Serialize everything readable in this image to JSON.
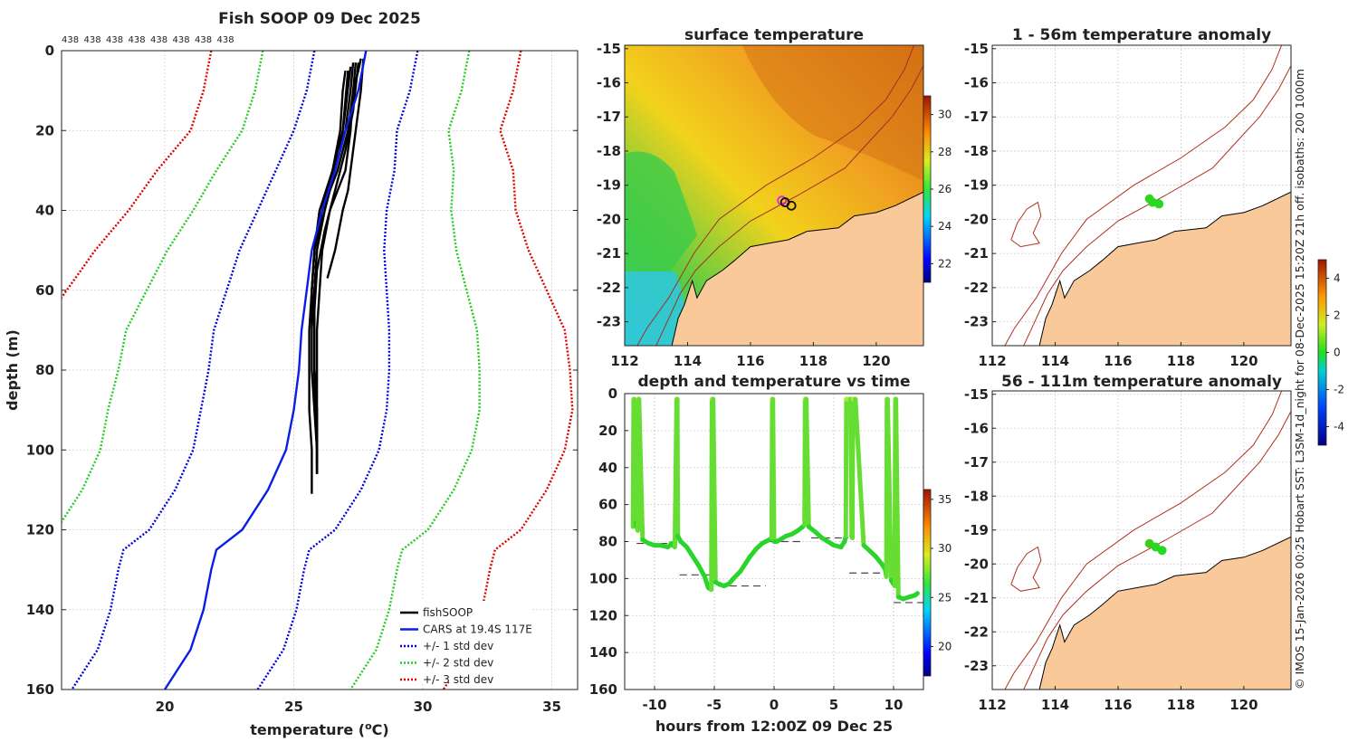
{
  "footer_text": "© IMOS 15-Jan-2026 00:25 Hobart SST: L3SM-1d_night for 08-Dec-2025 15:20Z 21h off. isobaths: 200   1000m",
  "colors": {
    "fishsoop": "#000000",
    "cars": "#0a1ee6",
    "std1": "#0000dd",
    "std2": "#22cc22",
    "std3": "#dd0000",
    "land": "#f9c99a",
    "isobath": "#b03020"
  },
  "chart_data": [
    {
      "name": "profile",
      "type": "line",
      "title": "Fish SOOP 09 Dec 2025",
      "xlabel": "temperature (°C)",
      "ylabel": "depth (m)",
      "xlim": [
        16,
        36
      ],
      "ylim": [
        160,
        0
      ],
      "xticks": [
        20,
        25,
        30,
        35
      ],
      "yticks": [
        0,
        20,
        40,
        60,
        80,
        100,
        120,
        140,
        160
      ],
      "top_labels": [
        "438",
        "438",
        "438",
        "438",
        "438",
        "438",
        "438",
        "438"
      ],
      "legend": [
        "fishSOOP",
        "CARS at 19.4S 117E",
        "+/- 1 std dev",
        "+/- 2 std dev",
        "+/- 3 std dev"
      ],
      "depth": [
        0,
        10,
        20,
        30,
        40,
        50,
        60,
        70,
        80,
        90,
        100,
        110,
        120,
        125,
        130,
        140,
        150,
        160
      ],
      "cars_mean": [
        27.8,
        27.5,
        27.0,
        26.6,
        26.1,
        25.7,
        25.5,
        25.3,
        25.2,
        25.0,
        24.7,
        24.0,
        23.0,
        22.0,
        21.8,
        21.5,
        21.0,
        20.0
      ],
      "std_dev": [
        2.0,
        2.0,
        2.0,
        2.3,
        2.5,
        2.8,
        3.1,
        3.4,
        3.5,
        3.6,
        3.6,
        3.6,
        3.6,
        3.6,
        3.6,
        3.6,
        3.6,
        3.6
      ],
      "casts": [
        {
          "depth": [
            2,
            5,
            10,
            20,
            30,
            40,
            50,
            60,
            70,
            80,
            90,
            100,
            106
          ],
          "temp": [
            27.6,
            27.5,
            27.3,
            27.2,
            27.0,
            26.4,
            26.1,
            26.0,
            25.9,
            25.9,
            25.9,
            25.9,
            25.9
          ]
        },
        {
          "depth": [
            3,
            10,
            20,
            30,
            40,
            50,
            60,
            70,
            80,
            90,
            100,
            106
          ],
          "temp": [
            27.4,
            27.3,
            27.1,
            26.7,
            26.1,
            25.9,
            25.8,
            25.8,
            25.8,
            25.9,
            25.9,
            25.9
          ]
        },
        {
          "depth": [
            2,
            10,
            20,
            30,
            35,
            40,
            50,
            57
          ],
          "temp": [
            27.7,
            27.6,
            27.4,
            27.2,
            27.1,
            26.9,
            26.6,
            26.3
          ]
        },
        {
          "depth": [
            5,
            10,
            20,
            30,
            40,
            50,
            60,
            70,
            80,
            90,
            100,
            105
          ],
          "temp": [
            27.0,
            26.9,
            26.8,
            26.5,
            26.0,
            25.8,
            25.7,
            25.8,
            25.8,
            25.8,
            25.9,
            25.9
          ]
        },
        {
          "depth": [
            3,
            10,
            20,
            30,
            40,
            50,
            60,
            70,
            80,
            90,
            100,
            104
          ],
          "temp": [
            27.3,
            27.2,
            27.0,
            26.6,
            26.2,
            25.9,
            25.8,
            25.8,
            25.8,
            25.9,
            25.9,
            25.9
          ]
        },
        {
          "depth": [
            4,
            15,
            25,
            35,
            40,
            50,
            60,
            70,
            80,
            90
          ],
          "temp": [
            27.2,
            27.0,
            26.8,
            26.3,
            26.0,
            25.8,
            25.7,
            25.7,
            25.7,
            25.8
          ]
        },
        {
          "depth": [
            5,
            20,
            30,
            40,
            50,
            60,
            70,
            80,
            90,
            100,
            111
          ],
          "temp": [
            27.1,
            26.9,
            26.5,
            26.1,
            25.8,
            25.7,
            25.6,
            25.6,
            25.6,
            25.7,
            25.7
          ]
        },
        {
          "depth": [
            3,
            15,
            25,
            35,
            45,
            55,
            65,
            80,
            95,
            106
          ],
          "temp": [
            27.5,
            27.3,
            27.0,
            26.6,
            26.2,
            25.9,
            25.8,
            25.8,
            25.9,
            25.9
          ]
        }
      ]
    },
    {
      "name": "surface_map",
      "type": "heatmap",
      "title": "surface temperature",
      "xlim": [
        112,
        121.5
      ],
      "ylim": [
        -23.7,
        -14.9
      ],
      "xticks": [
        112,
        114,
        116,
        118,
        120
      ],
      "yticks": [
        -15,
        -16,
        -17,
        -18,
        -19,
        -20,
        -21,
        -22,
        -23
      ],
      "colorbar_ticks": [
        22,
        24,
        26,
        28,
        30
      ],
      "colorbar_range": [
        21,
        31
      ],
      "cast_positions": [
        {
          "lon": 117.0,
          "lat": -19.45
        },
        {
          "lon": 117.1,
          "lat": -19.5
        },
        {
          "lon": 117.3,
          "lat": -19.6
        }
      ]
    },
    {
      "name": "time_series",
      "type": "scatter",
      "title": "depth and temperature vs time",
      "xlabel": "hours from 12:00Z 09 Dec 25",
      "xlim": [
        -12.5,
        12.5
      ],
      "ylim": [
        160,
        0
      ],
      "xticks": [
        -10,
        -5,
        0,
        5,
        10
      ],
      "yticks": [
        0,
        20,
        40,
        60,
        80,
        100,
        120,
        140,
        160
      ],
      "colorbar_ticks": [
        20,
        25,
        30,
        35
      ],
      "colorbar_range": [
        17,
        36
      ],
      "depth_track": {
        "time": [
          -11.8,
          -11.75,
          -11.7,
          -11.55,
          -11.4,
          -11.35,
          -11.3,
          -11.0,
          -10.5,
          -10.0,
          -9.5,
          -8.9,
          -8.7,
          -8.6,
          -8.3,
          -8.15,
          -8.1,
          -8.05,
          -7.8,
          -7.3,
          -6.8,
          -6.3,
          -5.8,
          -5.5,
          -5.25,
          -5.2,
          -5.1,
          -4.9,
          -4.6,
          -4.2,
          -3.8,
          -3.4,
          -2.8,
          -2.4,
          -2.0,
          -1.5,
          -1.0,
          -0.4,
          -0.2,
          -0.15,
          -0.1,
          0.0,
          0.2,
          0.5,
          1.0,
          1.5,
          2.0,
          2.4,
          2.55,
          2.6,
          2.7,
          2.9,
          3.5,
          4.0,
          4.5,
          5.0,
          5.6,
          5.9,
          6.0,
          6.05,
          6.4,
          6.5,
          6.55,
          6.6,
          6.8,
          7.5,
          8.0,
          8.5,
          9.0,
          9.3,
          9.4,
          9.45,
          9.5,
          9.8,
          10.1,
          10.15,
          10.2,
          10.4,
          10.8,
          11.3,
          11.8,
          12.0
        ],
        "depth": [
          72,
          3,
          3,
          70,
          74,
          3,
          3,
          79,
          81,
          82,
          82,
          83,
          82,
          81,
          83,
          3,
          3,
          77,
          80,
          83,
          88,
          93,
          99,
          105,
          106,
          3,
          3,
          102,
          103,
          104,
          103,
          100,
          96,
          92,
          88,
          84,
          81,
          79,
          78,
          3,
          3,
          80,
          80,
          79,
          77,
          76,
          74,
          72,
          71,
          3,
          3,
          72,
          75,
          78,
          80,
          82,
          83,
          80,
          77,
          3,
          3,
          77,
          78,
          3,
          3,
          82,
          85,
          88,
          92,
          95,
          99,
          3,
          3,
          101,
          104,
          3,
          3,
          110,
          111,
          110,
          109,
          108
        ]
      },
      "dashes": [
        {
          "t0": -11.5,
          "t1": -8.8,
          "depth": 81
        },
        {
          "t0": -7.9,
          "t1": -5.2,
          "depth": 98
        },
        {
          "t0": -4.7,
          "t1": -0.7,
          "depth": 104
        },
        {
          "t0": -0.4,
          "t1": 2.2,
          "depth": 80
        },
        {
          "t0": 3.1,
          "t1": 6.2,
          "depth": 78
        },
        {
          "t0": 6.3,
          "t1": 9.2,
          "depth": 97
        },
        {
          "t0": 10.0,
          "t1": 12.5,
          "depth": 113
        }
      ]
    },
    {
      "name": "anomaly_shallow",
      "type": "heatmap",
      "title": "1 - 56m temperature anomaly",
      "xlim": [
        112,
        121.5
      ],
      "ylim": [
        -23.7,
        -14.9
      ],
      "xticks": [
        112,
        114,
        116,
        118,
        120
      ],
      "yticks": [
        -15,
        -16,
        -17,
        -18,
        -19,
        -20,
        -21,
        -22,
        -23
      ],
      "points": [
        {
          "lon": 117.0,
          "lat": -19.4,
          "anomaly": 0.3
        },
        {
          "lon": 117.1,
          "lat": -19.5,
          "anomaly": 0.2
        },
        {
          "lon": 117.3,
          "lat": -19.55,
          "anomaly": 0.1
        }
      ]
    },
    {
      "name": "anomaly_deep",
      "type": "heatmap",
      "title": "56 - 111m temperature anomaly",
      "xlim": [
        112,
        121.5
      ],
      "ylim": [
        -23.7,
        -14.9
      ],
      "xticks": [
        112,
        114,
        116,
        118,
        120
      ],
      "yticks": [
        -15,
        -16,
        -17,
        -18,
        -19,
        -20,
        -21,
        -22,
        -23
      ],
      "points": [
        {
          "lon": 117.0,
          "lat": -19.4,
          "anomaly": 0.6
        },
        {
          "lon": 117.2,
          "lat": -19.5,
          "anomaly": 0.2
        },
        {
          "lon": 117.4,
          "lat": -19.6,
          "anomaly": 0.1
        }
      ]
    },
    {
      "name": "anomaly_colorbar",
      "type": "heatmap",
      "colorbar_ticks": [
        -4,
        -2,
        0,
        2,
        4
      ],
      "colorbar_range": [
        -5,
        5
      ]
    }
  ]
}
